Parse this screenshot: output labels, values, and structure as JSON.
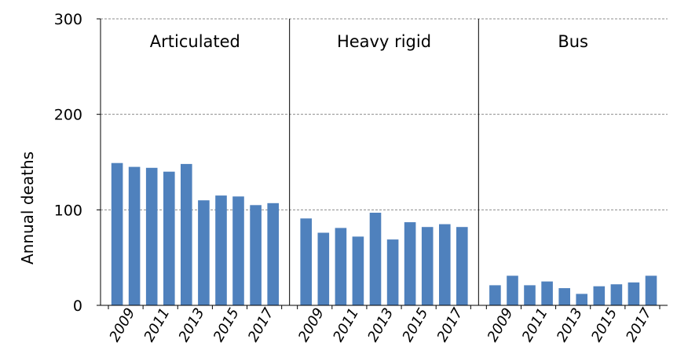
{
  "chart_data": {
    "type": "bar",
    "ylabel": "Annual  deaths",
    "ylim": [
      0,
      300
    ],
    "yticks": [
      0,
      100,
      200,
      300
    ],
    "grid": true,
    "panels": [
      {
        "title": "Articulated",
        "x": [
          2009,
          2010,
          2011,
          2012,
          2013,
          2014,
          2015,
          2016,
          2017,
          2018
        ],
        "values": [
          149,
          145,
          144,
          140,
          148,
          110,
          115,
          114,
          105,
          107
        ],
        "xtick_labels": [
          "2009",
          "2011",
          "2013",
          "2015",
          "2017"
        ]
      },
      {
        "title": "Heavy rigid",
        "x": [
          2009,
          2010,
          2011,
          2012,
          2013,
          2014,
          2015,
          2016,
          2017,
          2018
        ],
        "values": [
          91,
          76,
          81,
          72,
          97,
          69,
          87,
          82,
          85,
          82
        ],
        "xtick_labels": [
          "2009",
          "2011",
          "2013",
          "2015",
          "2017"
        ]
      },
      {
        "title": "Bus",
        "x": [
          2009,
          2010,
          2011,
          2012,
          2013,
          2014,
          2015,
          2016,
          2017,
          2018
        ],
        "values": [
          21,
          31,
          21,
          25,
          18,
          12,
          20,
          22,
          24,
          31
        ],
        "xtick_labels": [
          "2009",
          "2011",
          "2013",
          "2015",
          "2017"
        ]
      }
    ],
    "colors": {
      "bar": "#4f81bd",
      "grid": "#8c8c8c",
      "axis": "#000000"
    }
  }
}
